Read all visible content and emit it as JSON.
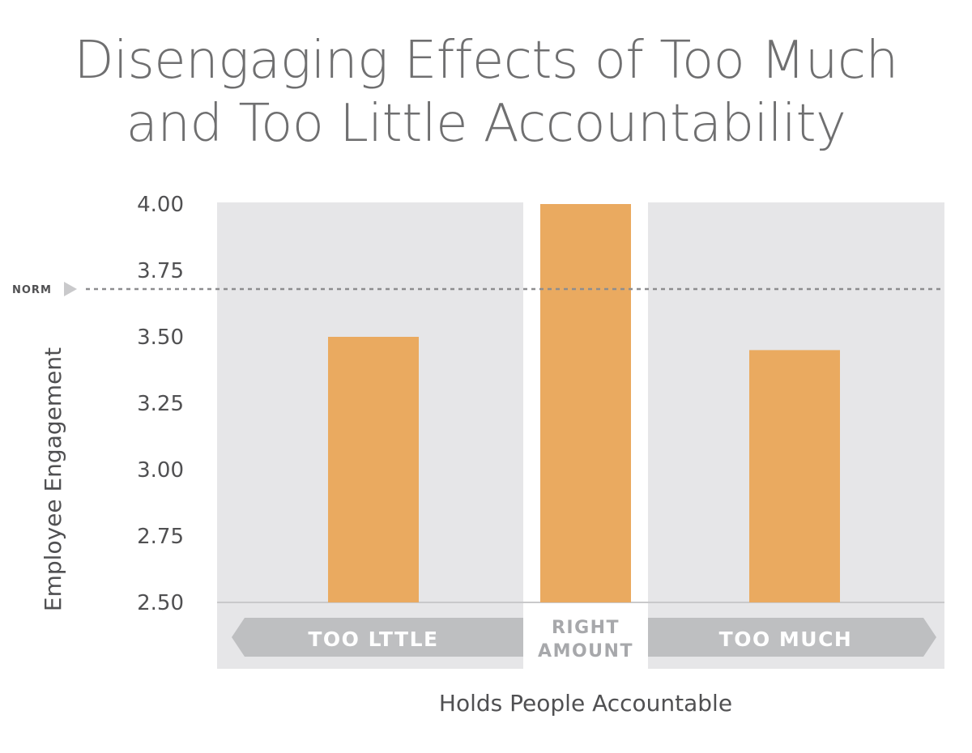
{
  "chart_data": {
    "type": "bar",
    "title": [
      "Disengaging Effects of Too Much",
      "and Too Little Accountability"
    ],
    "xlabel": "Holds People Accountable",
    "ylabel": "Employee Engagement",
    "categories": [
      "TOO LTTLE",
      "RIGHT AMOUNT",
      "TOO MUCH"
    ],
    "values": [
      3.5,
      4.0,
      3.45
    ],
    "ylim": [
      2.5,
      4.0
    ],
    "yticks": [
      "4.00",
      "3.75",
      "3.50",
      "3.25",
      "3.00",
      "2.75",
      "2.50"
    ],
    "reference_line": {
      "label": "NORM",
      "value": 3.68
    },
    "middle_label_lines": [
      "RIGHT",
      "AMOUNT"
    ],
    "colors": {
      "bar": "#eaaa60",
      "panel": "#e6e6e8",
      "category_band": "#bebfc1",
      "text": "#505052",
      "title": "#6f6f70"
    }
  }
}
